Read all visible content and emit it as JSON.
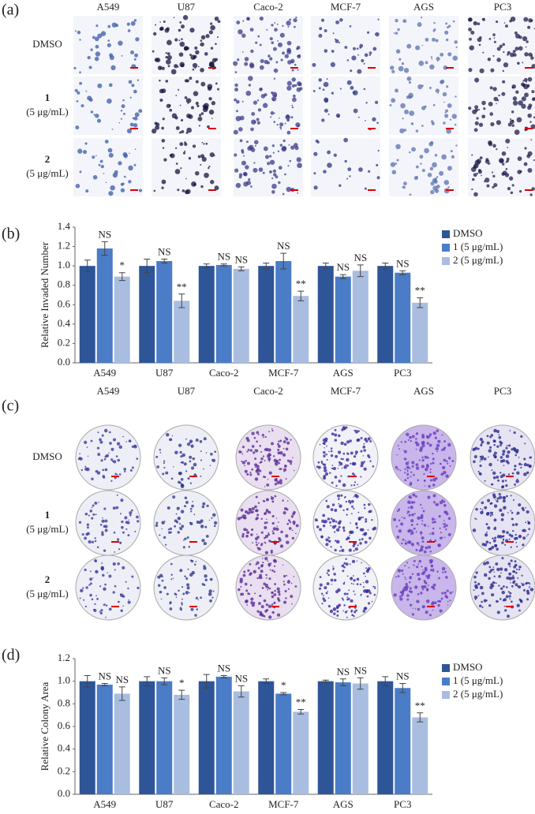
{
  "panels": {
    "a": "(a)",
    "b": "(b)",
    "c": "(c)",
    "d": "(d)"
  },
  "grid_a": {
    "columns": [
      "A549",
      "U87",
      "Caco-2",
      "MCF-7",
      "AGS",
      "PC3"
    ],
    "rows": [
      {
        "label": "DMSO"
      },
      {
        "label": "1",
        "sublabel": "(5 μg/mL)"
      },
      {
        "label": "2",
        "sublabel": "(5 μg/mL)"
      }
    ]
  },
  "grid_c": {
    "columns": [
      "A549",
      "U87",
      "Caco-2",
      "MCF-7",
      "AGS",
      "PC3"
    ],
    "rows": [
      {
        "label": "DMSO"
      },
      {
        "label": "1",
        "sublabel": "(5 μg/mL)"
      },
      {
        "label": "2",
        "sublabel": "(5 μg/mL)"
      }
    ]
  },
  "chart_data": [
    {
      "type": "bar",
      "y_label": "Relative Invaded Number",
      "categories": [
        "A549",
        "U87",
        "Caco-2",
        "MCF-7",
        "AGS",
        "PC3"
      ],
      "ylim": [
        0,
        1.4
      ],
      "yticks": [
        {
          "value": 0,
          "label": "0.0"
        },
        {
          "value": 0.2,
          "label": "0.2"
        },
        {
          "value": 0.4,
          "label": "0.4"
        },
        {
          "value": 0.6,
          "label": "0.6"
        },
        {
          "value": 0.8,
          "label": "0.8"
        },
        {
          "value": 1,
          "label": "1.0"
        },
        {
          "value": 1.2,
          "label": "1.2"
        },
        {
          "value": 1.4,
          "label": "1.4"
        }
      ],
      "legend": "right",
      "series": [
        {
          "name": "DMSO",
          "color": "#2e5597",
          "values": [
            1.0,
            1.0,
            1.0,
            1.0,
            1.0,
            1.0
          ],
          "errors": [
            0.06,
            0.07,
            0.02,
            0.03,
            0.03,
            0.03
          ],
          "labels": [
            null,
            null,
            null,
            null,
            null,
            null
          ]
        },
        {
          "name": "1 (5 μg/mL)",
          "color": "#4a7cc7",
          "values": [
            1.18,
            1.05,
            1.01,
            1.05,
            0.89,
            0.93
          ],
          "errors": [
            0.07,
            0.02,
            0.01,
            0.08,
            0.02,
            0.02
          ],
          "labels": [
            "NS",
            "NS",
            "NS",
            "NS",
            "NS",
            "NS"
          ]
        },
        {
          "name": "2 (5 μg/mL)",
          "color": "#a9bde0",
          "values": [
            0.89,
            0.64,
            0.97,
            0.69,
            0.95,
            0.62
          ],
          "errors": [
            0.04,
            0.07,
            0.02,
            0.05,
            0.06,
            0.05
          ],
          "labels": [
            "*",
            "**",
            "NS",
            "**",
            "NS",
            "**"
          ]
        }
      ]
    },
    {
      "type": "bar",
      "y_label": "Relative Colony Area",
      "categories": [
        "A549",
        "U87",
        "Caco-2",
        "MCF-7",
        "AGS",
        "PC3"
      ],
      "ylim": [
        0,
        1.2
      ],
      "yticks": [
        {
          "value": 0,
          "label": "0.0"
        },
        {
          "value": 0.2,
          "label": "0.2"
        },
        {
          "value": 0.4,
          "label": "0.4"
        },
        {
          "value": 0.6,
          "label": "0.6"
        },
        {
          "value": 0.8,
          "label": "0.8"
        },
        {
          "value": 1,
          "label": "1.0"
        },
        {
          "value": 1.2,
          "label": "1.2"
        }
      ],
      "legend": "right",
      "series": [
        {
          "name": "DMSO",
          "color": "#2e5597",
          "values": [
            1.0,
            1.0,
            1.0,
            1.0,
            1.0,
            1.0
          ],
          "errors": [
            0.05,
            0.04,
            0.06,
            0.02,
            0.01,
            0.04
          ],
          "labels": [
            null,
            null,
            null,
            null,
            null,
            null
          ]
        },
        {
          "name": "1 (5 μg/mL)",
          "color": "#4a7cc7",
          "values": [
            0.97,
            1.0,
            1.04,
            0.89,
            0.99,
            0.94
          ],
          "errors": [
            0.01,
            0.03,
            0.01,
            0.01,
            0.03,
            0.04
          ],
          "labels": [
            "NS",
            "NS",
            "NS",
            "*",
            "NS",
            "NS"
          ]
        },
        {
          "name": "2 (5 μg/mL)",
          "color": "#a9bde0",
          "values": [
            0.89,
            0.88,
            0.91,
            0.73,
            0.98,
            0.68
          ],
          "errors": [
            0.06,
            0.04,
            0.05,
            0.02,
            0.05,
            0.04
          ],
          "labels": [
            "NS",
            "*",
            "NS",
            "**",
            "NS",
            "**"
          ]
        }
      ]
    }
  ]
}
